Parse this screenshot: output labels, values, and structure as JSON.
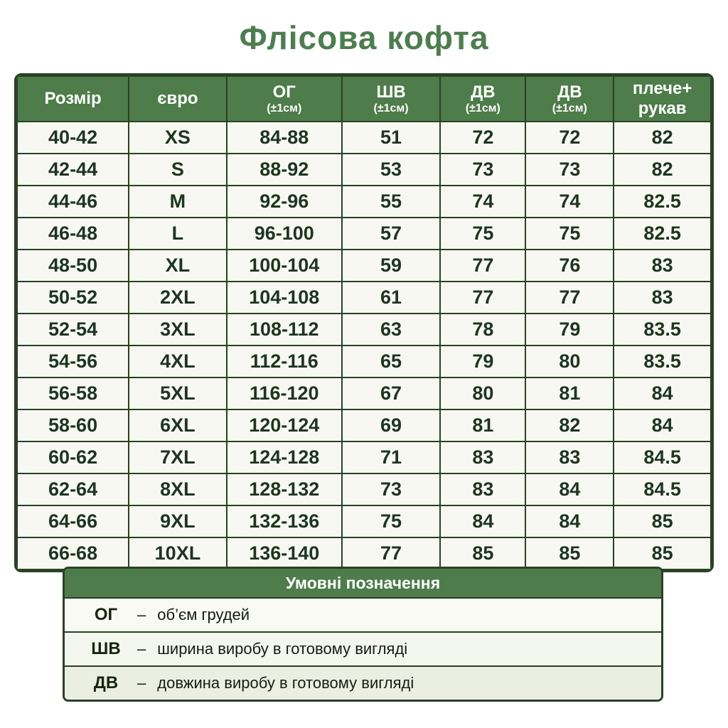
{
  "title": "Флісова кофта",
  "colors": {
    "header_green": "#4e7c4a",
    "border_green": "#2a4126",
    "title_green": "#4e7d4f",
    "cell_text_green": "#1e3520",
    "cell_background": "#f7f8f2"
  },
  "table": {
    "columns": [
      {
        "id": "rozmir",
        "label": "Розмір",
        "sub": "",
        "sub_small": false
      },
      {
        "id": "euro",
        "label": "євро",
        "sub": "",
        "sub_small": false
      },
      {
        "id": "og",
        "label": "ОГ",
        "sub": "(±1см)",
        "sub_small": true
      },
      {
        "id": "shv",
        "label": "ШВ",
        "sub": "(±1см)",
        "sub_small": true
      },
      {
        "id": "dv1",
        "label": "ДВ",
        "sub": "(±1см)",
        "sub_small": true
      },
      {
        "id": "dv2",
        "label": "ДВ",
        "sub": "(±1см)",
        "sub_small": true
      },
      {
        "id": "pleche",
        "label": "плече+",
        "sub": "рукав",
        "sub_small": false
      }
    ],
    "rows": [
      [
        "40-42",
        "XS",
        "84-88",
        "51",
        "72",
        "72",
        "82"
      ],
      [
        "42-44",
        "S",
        "88-92",
        "53",
        "73",
        "73",
        "82"
      ],
      [
        "44-46",
        "M",
        "92-96",
        "55",
        "74",
        "74",
        "82.5"
      ],
      [
        "46-48",
        "L",
        "96-100",
        "57",
        "75",
        "75",
        "82.5"
      ],
      [
        "48-50",
        "XL",
        "100-104",
        "59",
        "77",
        "76",
        "83"
      ],
      [
        "50-52",
        "2XL",
        "104-108",
        "61",
        "77",
        "77",
        "83"
      ],
      [
        "52-54",
        "3XL",
        "108-112",
        "63",
        "78",
        "79",
        "83.5"
      ],
      [
        "54-56",
        "4XL",
        "112-116",
        "65",
        "79",
        "80",
        "83.5"
      ],
      [
        "56-58",
        "5XL",
        "116-120",
        "67",
        "80",
        "81",
        "84"
      ],
      [
        "58-60",
        "6XL",
        "120-124",
        "69",
        "81",
        "82",
        "84"
      ],
      [
        "60-62",
        "7XL",
        "124-128",
        "71",
        "83",
        "83",
        "84.5"
      ],
      [
        "62-64",
        "8XL",
        "128-132",
        "73",
        "83",
        "84",
        "84.5"
      ],
      [
        "64-66",
        "9XL",
        "132-136",
        "75",
        "84",
        "84",
        "85"
      ],
      [
        "66-68",
        "10XL",
        "136-140",
        "77",
        "85",
        "85",
        "85"
      ]
    ]
  },
  "legend": {
    "title": "Умовні позначення",
    "dash": "–",
    "rows": [
      {
        "abbr": "ОГ",
        "text": "об’єм грудей"
      },
      {
        "abbr": "ШВ",
        "text": "ширина виробу в готовому вигляді"
      },
      {
        "abbr": "ДВ",
        "text": "довжина виробу в готовому вигляді"
      }
    ]
  },
  "chart_data": {
    "type": "table",
    "title": "Флісова кофта",
    "columns": [
      "Розмір",
      "євро",
      "ОГ (±1см)",
      "ШВ (±1см)",
      "ДВ (±1см)",
      "ДВ (±1см)",
      "плече+рукав"
    ],
    "rows": [
      [
        "40-42",
        "XS",
        "84-88",
        51,
        72,
        72,
        82
      ],
      [
        "42-44",
        "S",
        "88-92",
        53,
        73,
        73,
        82
      ],
      [
        "44-46",
        "M",
        "92-96",
        55,
        74,
        74,
        82.5
      ],
      [
        "46-48",
        "L",
        "96-100",
        57,
        75,
        75,
        82.5
      ],
      [
        "48-50",
        "XL",
        "100-104",
        59,
        77,
        76,
        83
      ],
      [
        "50-52",
        "2XL",
        "104-108",
        61,
        77,
        77,
        83
      ],
      [
        "52-54",
        "3XL",
        "108-112",
        63,
        78,
        79,
        83.5
      ],
      [
        "54-56",
        "4XL",
        "112-116",
        65,
        79,
        80,
        83.5
      ],
      [
        "56-58",
        "5XL",
        "116-120",
        67,
        80,
        81,
        84
      ],
      [
        "58-60",
        "6XL",
        "120-124",
        69,
        81,
        82,
        84
      ],
      [
        "60-62",
        "7XL",
        "124-128",
        71,
        83,
        83,
        84.5
      ],
      [
        "62-64",
        "8XL",
        "128-132",
        73,
        83,
        84,
        84.5
      ],
      [
        "64-66",
        "9XL",
        "132-136",
        75,
        84,
        84,
        85
      ],
      [
        "66-68",
        "10XL",
        "136-140",
        77,
        85,
        85,
        85
      ]
    ],
    "legend": [
      "ОГ – об’єм грудей",
      "ШВ – ширина виробу в готовому вигляді",
      "ДВ – довжина виробу в готовому вигляді"
    ]
  }
}
